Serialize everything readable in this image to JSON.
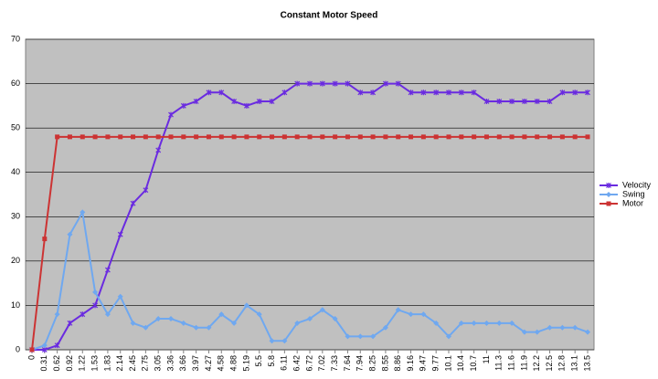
{
  "chart_data": {
    "type": "line",
    "title": "Constant Motor Speed",
    "categories": [
      "0",
      "0.31",
      "0.62",
      "0.92",
      "1.22",
      "1.53",
      "1.83",
      "2.14",
      "2.45",
      "2.75",
      "3.05",
      "3.36",
      "3.66",
      "3.97",
      "4.27",
      "4.58",
      "4.88",
      "5.19",
      "5.5",
      "5.8",
      "6.11",
      "6.42",
      "6.72",
      "7.02",
      "7.33",
      "7.64",
      "7.94",
      "8.25",
      "8.55",
      "8.86",
      "9.16",
      "9.47",
      "9.77",
      "10.1",
      "10.4",
      "10.7",
      "11",
      "11.3",
      "11.6",
      "11.9",
      "12.2",
      "12.5",
      "12.8",
      "13.1",
      "13.5"
    ],
    "series": [
      {
        "name": "Velocity",
        "color": "#6a2be0",
        "marker": "star",
        "values": [
          0,
          0,
          1,
          6,
          8,
          10,
          18,
          26,
          33,
          36,
          45,
          53,
          55,
          56,
          58,
          58,
          56,
          55,
          56,
          56,
          58,
          60,
          60,
          60,
          60,
          60,
          58,
          58,
          60,
          60,
          58,
          58,
          58,
          58,
          58,
          58,
          56,
          56,
          56,
          56,
          56,
          56,
          58,
          58,
          58
        ]
      },
      {
        "name": "Swing",
        "color": "#6fa8f0",
        "marker": "diamond",
        "values": [
          0,
          1,
          8,
          26,
          31,
          13,
          8,
          12,
          6,
          5,
          7,
          7,
          6,
          5,
          5,
          8,
          6,
          10,
          8,
          2,
          2,
          6,
          7,
          9,
          7,
          3,
          3,
          3,
          5,
          9,
          8,
          8,
          6,
          3,
          6,
          6,
          6,
          6,
          6,
          4,
          4,
          5,
          5,
          5,
          4
        ]
      },
      {
        "name": "Motor",
        "color": "#cc3333",
        "marker": "square",
        "values": [
          0,
          25,
          48,
          48,
          48,
          48,
          48,
          48,
          48,
          48,
          48,
          48,
          48,
          48,
          48,
          48,
          48,
          48,
          48,
          48,
          48,
          48,
          48,
          48,
          48,
          48,
          48,
          48,
          48,
          48,
          48,
          48,
          48,
          48,
          48,
          48,
          48,
          48,
          48,
          48,
          48,
          48,
          48,
          48,
          48
        ]
      }
    ],
    "ylim": [
      0,
      70
    ],
    "yticks": [
      0,
      10,
      20,
      30,
      40,
      50,
      60,
      70
    ],
    "grid": true,
    "legend": "right"
  }
}
